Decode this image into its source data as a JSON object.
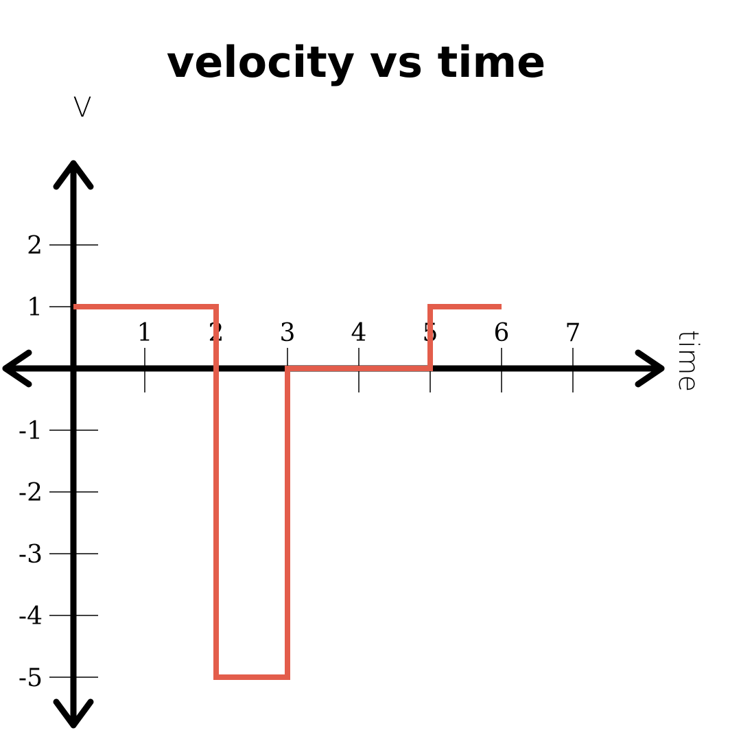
{
  "chart_data": {
    "type": "line",
    "step": true,
    "title": "velocity vs time",
    "xlabel": "time",
    "ylabel": "V",
    "x_ticks": [
      1,
      2,
      3,
      4,
      5,
      6,
      7
    ],
    "y_ticks": [
      2,
      1,
      -1,
      -2,
      -3,
      -4,
      -5
    ],
    "xlim": [
      0,
      8
    ],
    "ylim": [
      -5,
      2
    ],
    "grid": false,
    "legend": "none",
    "series_color": "#e35d4b",
    "axis_color": "#000000",
    "series": [
      {
        "points": [
          {
            "x": 0,
            "y": 1
          },
          {
            "x": 2,
            "y": 1
          },
          {
            "x": 2,
            "y": -5
          },
          {
            "x": 3,
            "y": -5
          },
          {
            "x": 3,
            "y": 0
          },
          {
            "x": 5,
            "y": 0
          },
          {
            "x": 5,
            "y": 1
          },
          {
            "x": 6,
            "y": 1
          }
        ]
      }
    ]
  }
}
